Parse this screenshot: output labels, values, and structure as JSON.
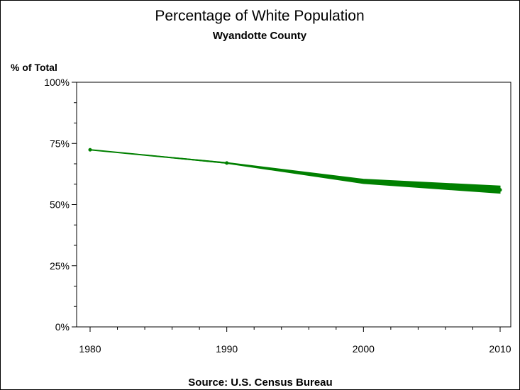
{
  "chart_data": {
    "type": "line",
    "title": "Percentage of White Population",
    "subtitle": "Wyandotte County",
    "ylabel": "% of Total",
    "xlabel": "",
    "footnote": "Source: U.S. Census Bureau",
    "x_ticks": [
      "1980",
      "1990",
      "2000",
      "2010"
    ],
    "y_ticks": [
      "0%",
      "25%",
      "50%",
      "75%",
      "100%"
    ],
    "xlim": [
      1980,
      2010
    ],
    "ylim": [
      0,
      100
    ],
    "series": [
      {
        "x": [
          1980,
          1990,
          2000,
          2010
        ],
        "y": [
          72.4,
          67.0,
          59.6,
          56.0
        ],
        "band_low": [
          72.4,
          66.8,
          58.6,
          54.6
        ],
        "band_high": [
          72.4,
          67.2,
          60.4,
          57.6
        ],
        "color": "#008000"
      }
    ],
    "grid": false,
    "legend": "none"
  }
}
